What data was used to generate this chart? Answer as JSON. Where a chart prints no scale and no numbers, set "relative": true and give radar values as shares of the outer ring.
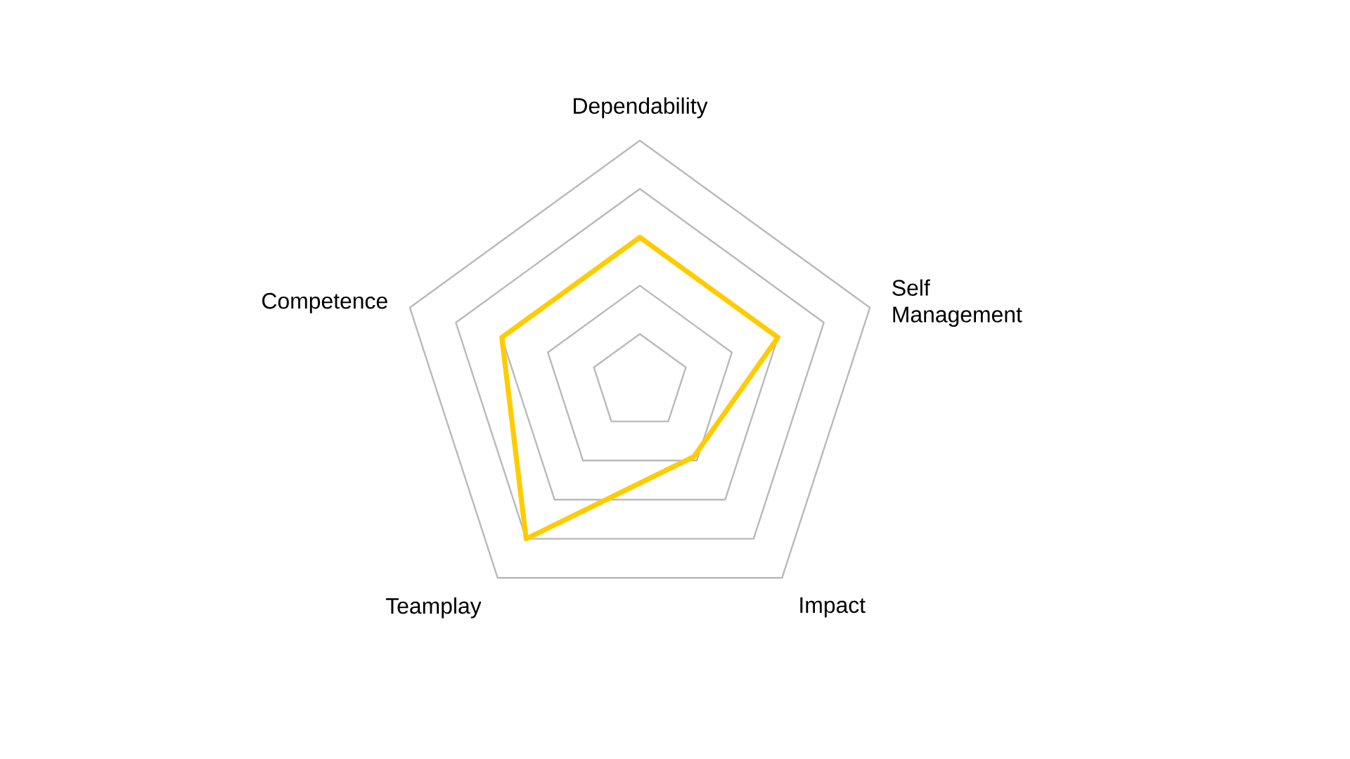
{
  "chart_data": {
    "type": "radar",
    "relative": true,
    "grid": true,
    "categories": [
      "Dependability",
      "Self Management",
      "Impact",
      "Teamplay",
      "Competence"
    ],
    "series": [
      {
        "color": "#ffcc00",
        "values": [
          0.6,
          0.6,
          0.38,
          0.8,
          0.6
        ]
      }
    ]
  }
}
